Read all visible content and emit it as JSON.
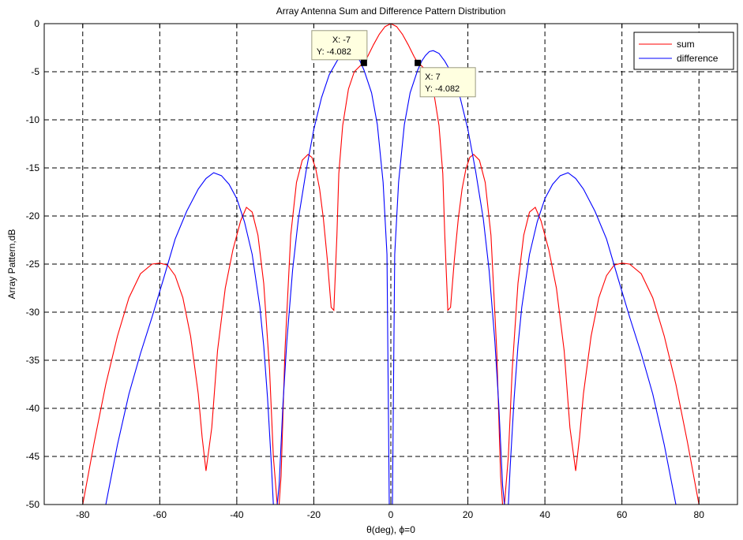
{
  "chart_data": {
    "type": "line",
    "title": "Array Antenna Sum and Difference Pattern Distribution",
    "xlabel": "θ(deg), ϕ=0",
    "ylabel": "Array Pattern,dB",
    "xlim": [
      -90,
      90
    ],
    "ylim": [
      -50,
      0
    ],
    "xticks": [
      -80,
      -60,
      -40,
      -20,
      0,
      20,
      40,
      60,
      80
    ],
    "yticks": [
      0,
      -5,
      -10,
      -15,
      -20,
      -25,
      -30,
      -35,
      -40,
      -45,
      -50
    ],
    "grid": true,
    "legend_position": "top-right",
    "series": [
      {
        "name": "sum",
        "color": "#ff0000",
        "x": [
          -80,
          -77,
          -74,
          -71,
          -68,
          -65,
          -62,
          -60,
          -58,
          -56,
          -54,
          -52,
          -50,
          -49,
          -48,
          -46.5,
          -45,
          -43,
          -41,
          -39,
          -37.5,
          -36,
          -34.5,
          -33,
          -31.5,
          -30.5,
          -29.5,
          -29,
          -28.5,
          -27.5,
          -26,
          -24.5,
          -23,
          -21.5,
          -20.5,
          -19.5,
          -18.5,
          -17.5,
          -16.5,
          -15.5,
          -14.8,
          -14,
          -13.5,
          -12.5,
          -11,
          -9.5,
          -8,
          -7,
          -6,
          -4.5,
          -3,
          -1.5,
          0,
          1.5,
          3,
          4.5,
          6,
          7,
          8,
          9.5,
          11,
          12.5,
          13.5,
          14,
          14.8,
          15.5,
          16.5,
          17.5,
          18.5,
          19.5,
          20.5,
          21.5,
          23,
          24.5,
          26,
          27.5,
          28.5,
          29,
          29.5,
          30.5,
          31.5,
          33,
          34.5,
          36,
          37.5,
          39,
          41,
          43,
          45,
          46.5,
          48,
          49,
          50,
          52,
          54,
          56,
          58,
          60,
          62,
          65,
          68,
          71,
          74,
          77,
          80
        ],
        "y": [
          -50,
          -43.5,
          -37.5,
          -32.5,
          -28.5,
          -26,
          -25,
          -24.9,
          -25.1,
          -26.2,
          -28.5,
          -32.5,
          -38.5,
          -43,
          -46.5,
          -42,
          -34,
          -27.5,
          -23.5,
          -20.5,
          -19.1,
          -19.6,
          -22,
          -27,
          -36,
          -45,
          -50,
          -50,
          -47,
          -34,
          -22,
          -16.5,
          -14.2,
          -13.6,
          -13.9,
          -15.1,
          -17.2,
          -20.3,
          -24.5,
          -29.5,
          -29.8,
          -22,
          -15.6,
          -10.6,
          -6.8,
          -5,
          -4.4,
          -4.082,
          -3.4,
          -2.2,
          -1.1,
          -0.3,
          0,
          -0.3,
          -1.1,
          -2.2,
          -3.4,
          -4.082,
          -4.4,
          -5,
          -6.8,
          -10.6,
          -15.6,
          -22,
          -29.8,
          -29.5,
          -24.5,
          -20.3,
          -17.2,
          -15.1,
          -13.9,
          -13.6,
          -14.2,
          -16.5,
          -22,
          -34,
          -47,
          -50,
          -50,
          -45,
          -36,
          -27,
          -22,
          -19.6,
          -19.1,
          -20.5,
          -23.5,
          -27.5,
          -34,
          -42,
          -46.5,
          -43,
          -38.5,
          -32.5,
          -28.5,
          -26.2,
          -25.1,
          -24.9,
          -25,
          -26,
          -28.5,
          -32.5,
          -37.5,
          -43.5,
          -50
        ]
      },
      {
        "name": "difference",
        "color": "#0000ff",
        "x": [
          -74,
          -71,
          -68,
          -65,
          -62,
          -59,
          -56,
          -53,
          -50,
          -48,
          -46,
          -44,
          -42,
          -40,
          -38,
          -36,
          -34,
          -33,
          -32,
          -31,
          -30.5,
          -30,
          -29.5,
          -29,
          -28,
          -27,
          -25.5,
          -24,
          -22,
          -20,
          -18,
          -16,
          -14,
          -12.5,
          -11,
          -10,
          -9,
          -8,
          -7,
          -5,
          -3.5,
          -2,
          -1,
          -0.4,
          0.4,
          1,
          2,
          3.5,
          5,
          7,
          8,
          9,
          10,
          11,
          12.5,
          14,
          16,
          18,
          20,
          22,
          24,
          25.5,
          27,
          28,
          29,
          29.5,
          30,
          30.5,
          31,
          32,
          33,
          34,
          36,
          38,
          40,
          42,
          44,
          46,
          48,
          50,
          53,
          56,
          59,
          62,
          65,
          68,
          71,
          74
        ],
        "y": [
          -50,
          -43.8,
          -38.5,
          -34.3,
          -30.5,
          -26.5,
          -22.4,
          -19.5,
          -17.2,
          -16.1,
          -15.5,
          -15.8,
          -16.7,
          -18.2,
          -20.6,
          -24,
          -29.5,
          -33.5,
          -39,
          -46,
          -50,
          -50,
          -50,
          -48,
          -39.5,
          -33,
          -25.6,
          -20.3,
          -15.3,
          -11,
          -7.7,
          -5.3,
          -3.9,
          -3.1,
          -2.8,
          -2.9,
          -3.3,
          -3.9,
          -4.8,
          -7.2,
          -10.5,
          -16.5,
          -24,
          -50,
          -50,
          -24,
          -16.5,
          -10.5,
          -7.2,
          -4.8,
          -3.9,
          -3.3,
          -2.9,
          -2.8,
          -3.1,
          -3.9,
          -5.3,
          -7.7,
          -11,
          -15.3,
          -20.3,
          -25.6,
          -33,
          -39.5,
          -48,
          -50,
          -50,
          -50,
          -46,
          -39,
          -33.5,
          -29.5,
          -24,
          -20.6,
          -18.2,
          -16.7,
          -15.8,
          -15.5,
          -16.1,
          -17.2,
          -19.5,
          -22.4,
          -26.5,
          -30.5,
          -34.3,
          -38.5,
          -43.8,
          -50
        ]
      }
    ],
    "datatips": [
      {
        "x": -7,
        "y": -4.082,
        "x_text": "X: -7",
        "y_text": "Y: -4.082"
      },
      {
        "x": 7,
        "y": -4.082,
        "x_text": "X: 7",
        "y_text": "Y: -4.082"
      }
    ]
  }
}
